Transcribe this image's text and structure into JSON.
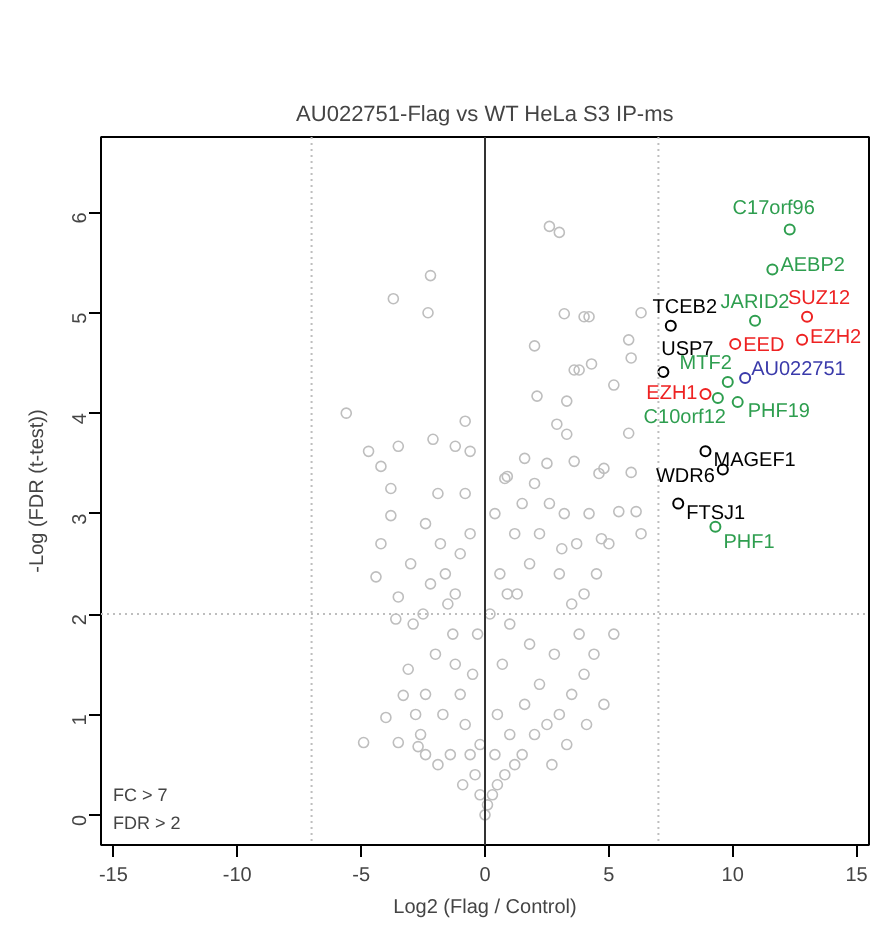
{
  "chart_data": {
    "type": "scatter",
    "title": "AU022751-Flag vs WT HeLa S3 IP-ms",
    "xlabel": "Log2 (Flag / Control)",
    "ylabel": "-Log (FDR (t-test))",
    "xlim": [
      -15.5,
      15.5
    ],
    "ylim": [
      -0.3,
      6.75
    ],
    "xticks": [
      -15,
      -10,
      -5,
      0,
      5,
      10,
      15
    ],
    "yticks": [
      0,
      1,
      2,
      3,
      4,
      5,
      6
    ],
    "grid": false,
    "marker": "circle",
    "ref_lines": [
      {
        "axis": "x",
        "value": -7,
        "color": "#bebebe",
        "line_style": "dotted"
      },
      {
        "axis": "x",
        "value": 7,
        "color": "#bebebe",
        "line_style": "dotted"
      },
      {
        "axis": "y",
        "value": 2,
        "color": "#bebebe",
        "line_style": "dotted"
      },
      {
        "axis": "x",
        "value": 0,
        "color": "#333333",
        "line_style": "solid"
      }
    ],
    "annotations": [
      "FC > 7",
      "FDR > 2"
    ],
    "series": [
      {
        "color": "#bebebe",
        "x": [
          2.6,
          3.0,
          -2.2,
          -3.7,
          -2.3,
          3.2,
          4.2,
          2.0,
          3.6,
          2.1,
          -5.6,
          -0.8,
          -4.7,
          -3.5,
          -4.2,
          -2.1,
          -1.2,
          -0.6,
          0.8,
          0.9,
          1.6,
          2.9,
          3.3,
          -3.8,
          -3.8,
          -4.2,
          -4.4,
          -3.5,
          -3.6,
          -4.9,
          -4.0,
          -3.3,
          -3.5,
          -2.7,
          -2.4,
          -3.1,
          4.0,
          5.8,
          5.9,
          6.3,
          4.3,
          3.8,
          5.2,
          3.3,
          5.8,
          5.9,
          4.8,
          3.6,
          5.4,
          6.1,
          6.3,
          4.7,
          3.1,
          0,
          0.1,
          -0.2,
          0.3,
          -0.4,
          0.5,
          0.8,
          -0.6,
          1.2,
          1.5,
          -0.8,
          -1,
          2,
          2.5,
          3,
          3.5,
          4,
          4.4,
          -1.2,
          -1.3,
          -1.5,
          -1.6,
          -1,
          -0.6,
          -1.8,
          -2.2,
          -2.5,
          -2,
          -2.4,
          -1.7,
          -2.8,
          -1.4,
          -0.5,
          -0.3,
          0.5,
          0.7,
          1,
          1.3,
          1.8,
          2.2,
          2.6,
          3,
          3.5,
          4,
          4.5,
          3.8,
          2.8,
          2.2,
          1.6,
          1,
          0.4,
          -0.2,
          -0.9,
          1.2,
          0.6,
          0.2,
          0.4,
          1.5,
          2.0,
          2.5,
          3.2,
          3.7,
          4.2,
          4.1,
          4.8,
          5.2,
          3.3,
          2.7,
          -1.2,
          -0.8,
          -1.9,
          -2.4,
          -2.9,
          -3,
          -2.6,
          -1.9,
          5.0,
          4.6,
          1.8,
          0.9
        ],
        "values": [
          5.86,
          5.8,
          5.37,
          5.14,
          5.0,
          4.99,
          4.96,
          4.67,
          4.43,
          4.17,
          4.0,
          3.92,
          3.62,
          3.67,
          3.47,
          3.74,
          3.67,
          3.62,
          3.35,
          3.37,
          3.55,
          3.89,
          3.79,
          3.25,
          2.98,
          2.7,
          2.37,
          2.17,
          1.95,
          0.72,
          0.97,
          1.19,
          0.72,
          0.68,
          0.6,
          1.45,
          4.96,
          4.73,
          4.55,
          5.0,
          4.49,
          4.43,
          4.28,
          4.12,
          3.8,
          3.41,
          3.45,
          3.52,
          3.02,
          3.02,
          2.8,
          2.75,
          2.65,
          0,
          0.1,
          0.2,
          0.2,
          0.4,
          0.3,
          0.4,
          0.6,
          0.5,
          0.6,
          0.9,
          1.2,
          0.8,
          0.9,
          1.0,
          1.2,
          1.4,
          1.6,
          1.5,
          1.8,
          2.1,
          2.4,
          2.6,
          2.8,
          2.7,
          2.3,
          2.0,
          1.6,
          1.2,
          1.0,
          1.0,
          0.6,
          1.4,
          1.8,
          1.0,
          1.5,
          1.9,
          2.2,
          2.5,
          2.8,
          3.1,
          2.4,
          2.1,
          2.2,
          2.4,
          1.8,
          1.6,
          1.3,
          1.1,
          0.8,
          0.6,
          0.7,
          0.3,
          2.8,
          2.4,
          2.0,
          3.0,
          3.1,
          3.3,
          3.5,
          3.0,
          2.7,
          3.0,
          0.9,
          1.1,
          1.8,
          0.7,
          0.5,
          2.2,
          3.2,
          3.2,
          2.9,
          1.9,
          2.5,
          0.8,
          0.5,
          2.7,
          3.4,
          1.7,
          2.2
        ]
      },
      {
        "name": "C17orf96",
        "color": "#2e9e4f",
        "x": [
          12.3
        ],
        "values": [
          5.83
        ]
      },
      {
        "name": "AEBP2",
        "color": "#2e9e4f",
        "x": [
          11.6
        ],
        "values": [
          5.43
        ]
      },
      {
        "name": "JARID2",
        "color": "#2e9e4f",
        "x": [
          10.9
        ],
        "values": [
          4.92
        ]
      },
      {
        "name": "SUZ12",
        "color": "#ee2222",
        "x": [
          13.0
        ],
        "values": [
          4.96
        ]
      },
      {
        "name": "TCEB2",
        "color": "#000000",
        "x": [
          7.5
        ],
        "values": [
          4.87
        ]
      },
      {
        "name": "EED",
        "color": "#ee2222",
        "x": [
          10.1
        ],
        "values": [
          4.69
        ]
      },
      {
        "name": "EZH2",
        "color": "#ee2222",
        "x": [
          12.8
        ],
        "values": [
          4.73
        ]
      },
      {
        "name": "USP7",
        "color": "#000000",
        "x": [
          7.2
        ],
        "values": [
          4.41
        ]
      },
      {
        "name": "AU022751",
        "color": "#3a3aaa",
        "x": [
          10.5
        ],
        "values": [
          4.35
        ]
      },
      {
        "name": "MTF2",
        "color": "#2e9e4f",
        "x": [
          9.8
        ],
        "values": [
          4.31
        ]
      },
      {
        "name": "PHF19",
        "color": "#2e9e4f",
        "x": [
          10.2
        ],
        "values": [
          4.11
        ]
      },
      {
        "name": "EZH1",
        "color": "#ee2222",
        "x": [
          8.9
        ],
        "values": [
          4.19
        ]
      },
      {
        "name": "C10orf12",
        "color": "#2e9e4f",
        "x": [
          9.4
        ],
        "values": [
          4.15
        ]
      },
      {
        "name": "MAGEF1",
        "color": "#000000",
        "x": [
          8.9
        ],
        "values": [
          3.62
        ]
      },
      {
        "name": "WDR6",
        "color": "#000000",
        "x": [
          9.6
        ],
        "values": [
          3.44
        ]
      },
      {
        "name": "FTSJ1",
        "color": "#000000",
        "x": [
          7.8
        ],
        "values": [
          3.1
        ]
      },
      {
        "name": "PHF1",
        "color": "#2e9e4f",
        "x": [
          9.3
        ],
        "values": [
          2.87
        ]
      }
    ]
  }
}
